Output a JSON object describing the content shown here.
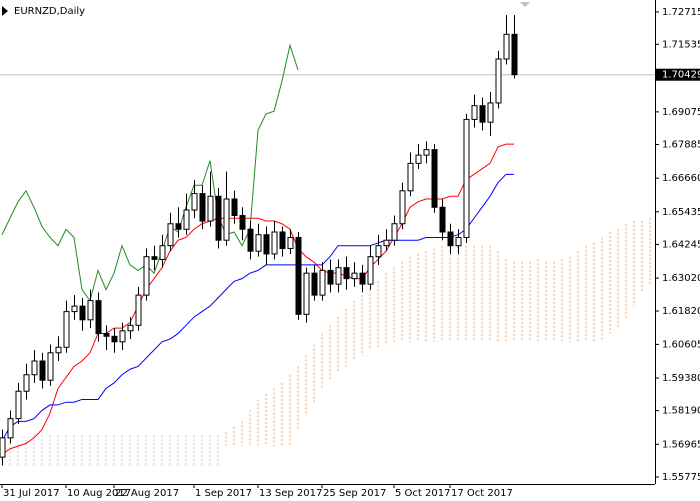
{
  "chart_data": {
    "type": "candlestick",
    "title": "EURNZD,Daily",
    "categories": [
      "31 Jul 2017",
      null,
      null,
      null,
      null,
      null,
      null,
      null,
      "10 Aug 2017",
      null,
      null,
      null,
      null,
      null,
      "22 Aug 2017",
      null,
      null,
      null,
      null,
      null,
      null,
      null,
      null,
      null,
      "1 Sep 2017",
      null,
      null,
      null,
      null,
      null,
      null,
      null,
      "13 Sep 2017",
      null,
      null,
      null,
      null,
      null,
      null,
      null,
      "25 Sep 2017",
      null,
      null,
      null,
      null,
      null,
      null,
      null,
      null,
      "5 Oct 2017",
      null,
      null,
      null,
      null,
      null,
      null,
      "17 Oct 2017",
      null,
      null,
      null,
      null,
      null,
      null,
      null,
      null,
      null,
      null,
      null,
      null,
      null,
      null,
      null,
      null,
      null,
      null,
      null,
      null,
      null,
      null,
      null,
      null,
      null
    ],
    "open": [
      1.565,
      1.572,
      1.579,
      1.589,
      1.595,
      1.6,
      1.593,
      1.603,
      1.605,
      1.618,
      1.62,
      1.615,
      1.622,
      1.61,
      1.609,
      1.607,
      1.611,
      1.613,
      1.624,
      1.638,
      1.637,
      1.642,
      1.65,
      1.648,
      1.655,
      1.661,
      1.651,
      1.66,
      1.644,
      1.659,
      1.653,
      1.648,
      1.64,
      1.646,
      1.639,
      1.647,
      1.641,
      1.645,
      1.617,
      1.632,
      1.624,
      1.633,
      1.628,
      1.634,
      1.63,
      1.632,
      1.628,
      1.638,
      1.642,
      1.644,
      1.65,
      1.662,
      1.672,
      1.675,
      1.677,
      1.656,
      1.647,
      1.642,
      1.645,
      1.688,
      1.693,
      1.687,
      1.694,
      1.71,
      1.719,
      null,
      null,
      null,
      null,
      null,
      null,
      null,
      null,
      null,
      null,
      null,
      null,
      null,
      null,
      null,
      null,
      null
    ],
    "high": [
      1.575,
      1.582,
      1.592,
      1.599,
      1.604,
      1.603,
      1.606,
      1.609,
      1.622,
      1.624,
      1.623,
      1.626,
      1.625,
      1.613,
      1.612,
      1.614,
      1.616,
      1.627,
      1.641,
      1.642,
      1.646,
      1.654,
      1.656,
      1.661,
      1.666,
      1.664,
      1.669,
      1.663,
      1.669,
      1.662,
      1.656,
      1.651,
      1.65,
      1.649,
      1.651,
      1.649,
      1.648,
      1.647,
      1.634,
      1.635,
      1.636,
      1.637,
      1.637,
      1.638,
      1.636,
      1.635,
      1.642,
      1.646,
      1.648,
      1.653,
      1.665,
      1.676,
      1.679,
      1.68,
      1.679,
      1.659,
      1.65,
      1.648,
      1.69,
      1.697,
      1.696,
      1.698,
      1.713,
      1.726,
      1.726,
      null,
      null,
      null,
      null,
      null,
      null,
      null,
      null,
      null,
      null,
      null,
      null,
      null,
      null,
      null,
      null,
      null
    ],
    "low": [
      1.562,
      1.57,
      1.577,
      1.586,
      1.592,
      1.59,
      1.591,
      1.6,
      1.603,
      1.615,
      1.611,
      1.612,
      1.607,
      1.604,
      1.603,
      1.604,
      1.608,
      1.611,
      1.622,
      1.633,
      1.634,
      1.64,
      1.645,
      1.646,
      1.652,
      1.648,
      1.649,
      1.641,
      1.642,
      1.65,
      1.644,
      1.637,
      1.638,
      1.635,
      1.637,
      1.638,
      1.639,
      1.615,
      1.614,
      1.622,
      1.622,
      1.625,
      1.625,
      1.626,
      1.627,
      1.625,
      1.626,
      1.635,
      1.64,
      1.642,
      1.648,
      1.66,
      1.67,
      1.672,
      1.654,
      1.644,
      1.639,
      1.639,
      1.643,
      1.685,
      1.684,
      1.682,
      1.692,
      1.708,
      1.703,
      null,
      null,
      null,
      null,
      null,
      null,
      null,
      null,
      null,
      null,
      null,
      null,
      null,
      null,
      null,
      null,
      null
    ],
    "close": [
      1.572,
      1.579,
      1.589,
      1.595,
      1.6,
      1.593,
      1.603,
      1.605,
      1.618,
      1.62,
      1.615,
      1.622,
      1.61,
      1.609,
      1.607,
      1.611,
      1.613,
      1.624,
      1.638,
      1.637,
      1.642,
      1.65,
      1.648,
      1.655,
      1.661,
      1.651,
      1.66,
      1.644,
      1.659,
      1.653,
      1.648,
      1.64,
      1.646,
      1.639,
      1.647,
      1.641,
      1.645,
      1.617,
      1.632,
      1.624,
      1.633,
      1.628,
      1.634,
      1.63,
      1.632,
      1.628,
      1.638,
      1.642,
      1.644,
      1.65,
      1.662,
      1.672,
      1.675,
      1.677,
      1.656,
      1.647,
      1.642,
      1.645,
      1.688,
      1.693,
      1.687,
      1.694,
      1.71,
      1.719,
      1.70429,
      null,
      null,
      null,
      null,
      null,
      null,
      null,
      null,
      null,
      null,
      null,
      null,
      null,
      null,
      null,
      null,
      null
    ],
    "up_color": "#ffffff",
    "down_color": "#000000",
    "indicators": {
      "tenkan_sen": {
        "color": "#ff0000",
        "values": [
          1.566,
          1.568,
          1.569,
          1.57,
          1.572,
          1.575,
          1.581,
          1.59,
          1.594,
          1.598,
          1.6,
          1.603,
          1.61,
          1.61,
          1.612,
          1.612,
          1.614,
          1.62,
          1.626,
          1.63,
          1.634,
          1.64,
          1.644,
          1.645,
          1.648,
          1.65,
          1.651,
          1.652,
          1.652,
          1.652,
          1.652,
          1.652,
          1.652,
          1.651,
          1.651,
          1.65,
          1.648,
          1.641,
          1.638,
          1.636,
          1.633,
          1.632,
          1.632,
          1.631,
          1.63,
          1.63,
          1.634,
          1.637,
          1.64,
          1.645,
          1.65,
          1.656,
          1.658,
          1.659,
          1.659,
          1.659,
          1.66,
          1.66,
          1.666,
          1.668,
          1.67,
          1.672,
          1.678,
          1.679,
          1.679,
          null,
          null,
          null,
          null,
          null,
          null,
          null,
          null,
          null,
          null,
          null,
          null,
          null,
          null,
          null,
          null,
          null
        ]
      },
      "kijun_sen": {
        "color": "#0000ff",
        "values": [
          1.571,
          1.576,
          1.578,
          1.578,
          1.579,
          1.582,
          1.584,
          1.584,
          1.585,
          1.585,
          1.586,
          1.586,
          1.586,
          1.59,
          1.592,
          1.595,
          1.597,
          1.598,
          1.601,
          1.604,
          1.607,
          1.608,
          1.61,
          1.613,
          1.616,
          1.618,
          1.62,
          1.623,
          1.626,
          1.629,
          1.63,
          1.632,
          1.633,
          1.635,
          1.635,
          1.635,
          1.635,
          1.635,
          1.635,
          1.635,
          1.635,
          1.638,
          1.642,
          1.642,
          1.642,
          1.642,
          1.642,
          1.643,
          1.644,
          1.644,
          1.644,
          1.644,
          1.644,
          1.645,
          1.645,
          1.645,
          1.645,
          1.646,
          1.648,
          1.652,
          1.656,
          1.66,
          1.665,
          1.668,
          1.668,
          null,
          null,
          null,
          null,
          null,
          null,
          null,
          null,
          null,
          null,
          null,
          null,
          null,
          null,
          null,
          null,
          null
        ]
      },
      "chikou_span": {
        "color": "#1e8c1e",
        "values": [
          1.646,
          1.652,
          1.658,
          1.662,
          1.656,
          1.649,
          1.645,
          1.642,
          1.648,
          1.645,
          1.626,
          1.622,
          1.633,
          1.626,
          1.632,
          1.642,
          1.635,
          1.633,
          1.635,
          1.632,
          1.64,
          1.649,
          1.647,
          1.656,
          1.664,
          1.664,
          1.673,
          1.653,
          1.646,
          1.647,
          1.642,
          1.648,
          1.684,
          1.69,
          1.691,
          1.702,
          1.715,
          1.706,
          null,
          null,
          null,
          null,
          null,
          null,
          null,
          null,
          null,
          null,
          null,
          null,
          null,
          null,
          null,
          null,
          null,
          null,
          null,
          null,
          null,
          null,
          null,
          null,
          null,
          null,
          null,
          null,
          null,
          null,
          null,
          null,
          null,
          null,
          null,
          null,
          null,
          null,
          null,
          null,
          null,
          null,
          null,
          null
        ]
      }
    },
    "cloud": {
      "up_color": "#f4a460",
      "down_color": "#d8bfd8",
      "span_a": [
        1.562,
        1.562,
        1.562,
        1.562,
        1.562,
        1.562,
        1.562,
        1.562,
        1.562,
        1.562,
        1.562,
        1.562,
        1.562,
        1.562,
        1.562,
        1.562,
        1.562,
        1.562,
        1.562,
        1.562,
        1.562,
        1.562,
        1.562,
        1.562,
        1.562,
        1.562,
        1.562,
        1.562,
        1.574,
        1.576,
        1.578,
        1.582,
        1.586,
        1.588,
        1.59,
        1.592,
        1.595,
        1.598,
        1.602,
        1.606,
        1.61,
        1.613,
        1.616,
        1.619,
        1.622,
        1.624,
        1.626,
        1.629,
        1.632,
        1.634,
        1.636,
        1.638,
        1.639,
        1.64,
        1.641,
        1.642,
        1.642,
        1.642,
        1.642,
        1.642,
        1.642,
        1.642,
        1.64,
        1.637,
        1.636,
        1.636,
        1.636,
        1.637,
        1.636,
        1.636,
        1.637,
        1.638,
        1.64,
        1.642,
        1.643,
        1.645,
        1.647,
        1.648,
        1.65,
        1.651,
        1.651,
        1.652
      ],
      "span_b": [
        1.571,
        1.571,
        1.571,
        1.571,
        1.573,
        1.573,
        1.573,
        1.573,
        1.573,
        1.573,
        1.573,
        1.573,
        1.573,
        1.573,
        1.573,
        1.573,
        1.573,
        1.573,
        1.573,
        1.573,
        1.573,
        1.573,
        1.573,
        1.573,
        1.573,
        1.573,
        1.573,
        1.573,
        1.569,
        1.569,
        1.569,
        1.569,
        1.569,
        1.569,
        1.569,
        1.569,
        1.569,
        1.575,
        1.58,
        1.585,
        1.59,
        1.593,
        1.596,
        1.598,
        1.6,
        1.602,
        1.604,
        1.605,
        1.606,
        1.607,
        1.607,
        1.607,
        1.607,
        1.607,
        1.607,
        1.607,
        1.607,
        1.607,
        1.607,
        1.607,
        1.607,
        1.607,
        1.607,
        1.607,
        1.607,
        1.607,
        1.607,
        1.607,
        1.607,
        1.607,
        1.607,
        1.607,
        1.607,
        1.607,
        1.607,
        1.607,
        1.61,
        1.612,
        1.615,
        1.62,
        1.625,
        1.628
      ]
    },
    "last_price": 1.70429,
    "last_price_line_color": "#c0c0c0",
    "ylim": [
      1.5552,
      1.7315
    ],
    "yticks": [
      1.72715,
      1.71535,
      1.69075,
      1.67885,
      {
        "value": 1.6666,
        "label": "1.66660"
      },
      1.65435,
      1.64245,
      {
        "value": 1.6302,
        "label": "1.63020"
      },
      {
        "value": 1.6182,
        "label": "1.61820"
      },
      1.60605,
      {
        "value": 1.5938,
        "label": "1.59380"
      },
      {
        "value": 1.5819,
        "label": "1.58190"
      },
      1.56965,
      1.55775
    ]
  }
}
